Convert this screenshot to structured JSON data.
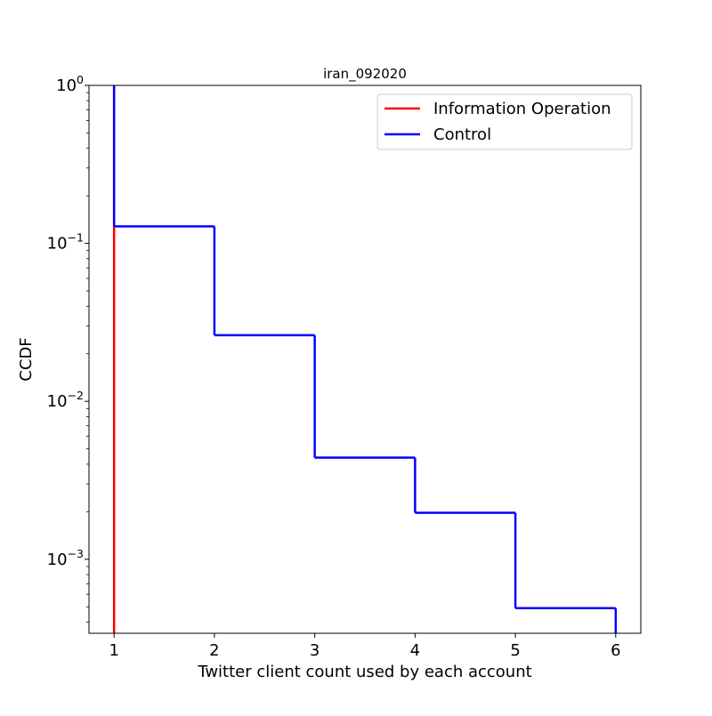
{
  "chart_data": {
    "type": "line",
    "title": "iran_092020",
    "xlabel": "Twitter client count used by each account",
    "ylabel": "CCDF",
    "xlim": [
      0.75,
      6.25
    ],
    "ylim": [
      0.00034,
      1
    ],
    "yscale": "log",
    "grid": false,
    "legend_position": "top-right",
    "x_ticks": [
      1,
      2,
      3,
      4,
      5,
      6
    ],
    "x_tick_labels": [
      "1",
      "2",
      "3",
      "4",
      "5",
      "6"
    ],
    "y_ticks": [
      {
        "value": 1,
        "base": "10",
        "exp": "0"
      },
      {
        "value": 0.1,
        "base": "10",
        "exp": "−1"
      },
      {
        "value": 0.01,
        "base": "10",
        "exp": "−2"
      },
      {
        "value": 0.001,
        "base": "10",
        "exp": "−3"
      }
    ],
    "series": [
      {
        "name": "Information Operation",
        "color": "#ff0000",
        "drawstyle": "steps-post",
        "x": [
          1,
          1
        ],
        "y": [
          1,
          0.00034
        ]
      },
      {
        "name": "Control",
        "color": "#0000ff",
        "drawstyle": "steps-post",
        "x": [
          1,
          1,
          2,
          3,
          4,
          5,
          6
        ],
        "y": [
          1,
          0.128,
          0.0262,
          0.0044,
          0.00197,
          0.00049,
          0.00034
        ]
      }
    ]
  }
}
